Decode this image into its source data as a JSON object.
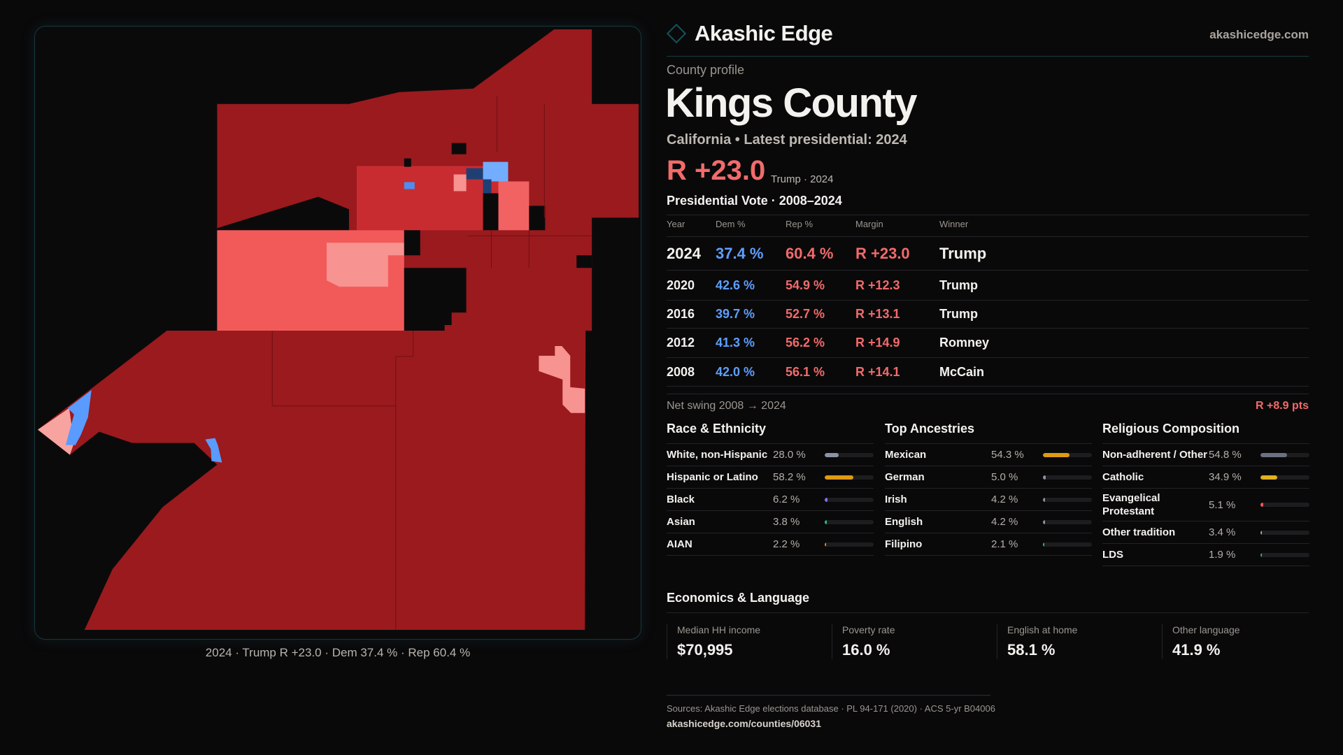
{
  "brand": {
    "name": "Akashic Edge",
    "site": "akashicedge.com"
  },
  "profile": {
    "kicker": "County profile",
    "title": "Kings County",
    "subtitle": "California • Latest presidential: 2024",
    "margin": "R +23.0",
    "margin_sub": "Trump · 2024"
  },
  "map": {
    "caption": "2024 · Trump R +23.0 · Dem 37.4 % · Rep 60.4 %",
    "colors": {
      "safe_r": "#9a1a1e",
      "lean_r": "#c92c30",
      "tilt_r": "#f25a5a",
      "light_r": "#f79390",
      "dem": "#5a9bff",
      "dem_light": "#72adff",
      "dem_dark": "#1f3f74"
    }
  },
  "vote": {
    "title": "Presidential Vote · 2008–2024",
    "headers": [
      "Year",
      "Dem %",
      "Rep %",
      "Margin",
      "Winner"
    ],
    "rows": [
      {
        "year": "2024",
        "dem": "37.4 %",
        "rep": "60.4 %",
        "margin": "R +23.0",
        "winner": "Trump"
      },
      {
        "year": "2020",
        "dem": "42.6 %",
        "rep": "54.9 %",
        "margin": "R +12.3",
        "winner": "Trump"
      },
      {
        "year": "2016",
        "dem": "39.7 %",
        "rep": "52.7 %",
        "margin": "R +13.1",
        "winner": "Trump"
      },
      {
        "year": "2012",
        "dem": "41.3 %",
        "rep": "56.2 %",
        "margin": "R +14.9",
        "winner": "Romney"
      },
      {
        "year": "2008",
        "dem": "42.0 %",
        "rep": "56.1 %",
        "margin": "R +14.1",
        "winner": "McCain"
      }
    ],
    "swing_label": "Net swing 2008 → 2024",
    "swing_value": "R +8.9 pts"
  },
  "race": {
    "title": "Race & Ethnicity",
    "items": [
      {
        "label": "White, non-Hispanic",
        "pct": "28.0 %",
        "value": 28.0,
        "color": "#8b94a4"
      },
      {
        "label": "Hispanic or Latino",
        "pct": "58.2 %",
        "value": 58.2,
        "color": "#de9a12"
      },
      {
        "label": "Black",
        "pct": "6.2 %",
        "value": 6.2,
        "color": "#8a6cf0"
      },
      {
        "label": "Asian",
        "pct": "3.8 %",
        "value": 3.8,
        "color": "#22c08a"
      },
      {
        "label": "AIAN",
        "pct": "2.2 %",
        "value": 2.2,
        "color": "#e08a20"
      }
    ]
  },
  "ancestry": {
    "title": "Top Ancestries",
    "items": [
      {
        "label": "Mexican",
        "pct": "54.3 %",
        "value": 54.3,
        "color": "#de9a12"
      },
      {
        "label": "German",
        "pct": "5.0 %",
        "value": 5.0,
        "color": "#8b94a4"
      },
      {
        "label": "Irish",
        "pct": "4.2 %",
        "value": 4.2,
        "color": "#8b94a4"
      },
      {
        "label": "English",
        "pct": "4.2 %",
        "value": 4.2,
        "color": "#8b94a4"
      },
      {
        "label": "Filipino",
        "pct": "2.1 %",
        "value": 2.1,
        "color": "#22c08a"
      }
    ]
  },
  "religion": {
    "title": "Religious Composition",
    "items": [
      {
        "label": "Non-adherent / Other",
        "pct": "54.8 %",
        "value": 54.8,
        "color": "#6b7180"
      },
      {
        "label": "Catholic",
        "pct": "34.9 %",
        "value": 34.9,
        "color": "#e0b020"
      },
      {
        "label": "Evangelical Protestant",
        "pct": "5.1 %",
        "value": 5.1,
        "color": "#f05a5a"
      },
      {
        "label": "Other tradition",
        "pct": "3.4 %",
        "value": 3.4,
        "color": "#a9a9a9"
      },
      {
        "label": "LDS",
        "pct": "1.9 %",
        "value": 1.9,
        "color": "#2ab0a0"
      }
    ]
  },
  "economics": {
    "title": "Economics & Language",
    "stats": [
      {
        "label": "Median HH income",
        "value": "$70,995"
      },
      {
        "label": "Poverty rate",
        "value": "16.0 %"
      },
      {
        "label": "English at home",
        "value": "58.1 %"
      },
      {
        "label": "Other language",
        "value": "41.9 %"
      }
    ]
  },
  "footer": {
    "sources": "Sources: Akashic Edge elections database · PL 94-171 (2020) · ACS 5-yr B04006",
    "link": "akashicedge.com/counties/06031"
  }
}
